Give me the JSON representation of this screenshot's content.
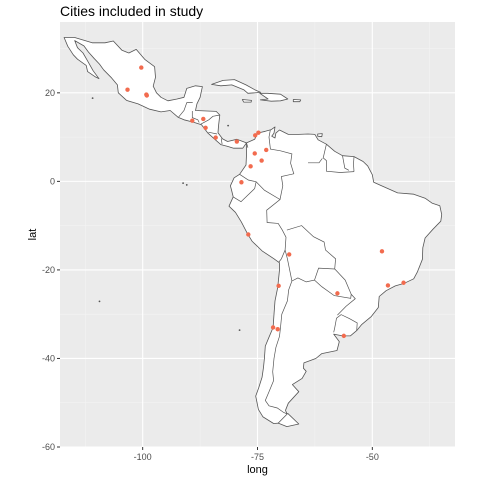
{
  "title": "Cities included in study",
  "colors": {
    "panel_background": "#ebebeb",
    "land_fill": "#ffffff",
    "land_outline": "#555555",
    "city_point": "#f26b4e"
  },
  "chart_data": {
    "type": "scatter",
    "title": "Cities included in study",
    "xlabel": "long",
    "ylabel": "lat",
    "xlim": [
      -118,
      -32
    ],
    "ylim": [
      -60,
      36
    ],
    "x_ticks": [
      -100,
      -75,
      -50
    ],
    "x_tick_labels": [
      "-100",
      "-75",
      "-50"
    ],
    "y_ticks": [
      -60,
      -40,
      -20,
      0,
      20
    ],
    "y_tick_labels": [
      "-60",
      "-40",
      "-20",
      "0",
      "20"
    ],
    "grid": true,
    "basemap": "Latin America country outlines",
    "points": [
      {
        "long": -100.3,
        "lat": 25.7
      },
      {
        "long": -103.3,
        "lat": 20.7
      },
      {
        "long": -99.1,
        "lat": 19.4
      },
      {
        "long": -99.2,
        "lat": 19.6
      },
      {
        "long": -86.8,
        "lat": 14.1
      },
      {
        "long": -89.2,
        "lat": 13.7
      },
      {
        "long": -86.3,
        "lat": 12.1
      },
      {
        "long": -84.1,
        "lat": 9.9
      },
      {
        "long": -79.5,
        "lat": 9.0
      },
      {
        "long": -75.5,
        "lat": 10.4
      },
      {
        "long": -74.8,
        "lat": 11.0
      },
      {
        "long": -75.6,
        "lat": 6.3
      },
      {
        "long": -73.1,
        "lat": 7.1
      },
      {
        "long": -74.1,
        "lat": 4.7
      },
      {
        "long": -76.5,
        "lat": 3.4
      },
      {
        "long": -78.5,
        "lat": -0.2
      },
      {
        "long": -77.0,
        "lat": -12.0
      },
      {
        "long": -68.1,
        "lat": -16.5
      },
      {
        "long": -47.9,
        "lat": -15.8
      },
      {
        "long": -70.4,
        "lat": -23.6
      },
      {
        "long": -46.6,
        "lat": -23.5
      },
      {
        "long": -43.2,
        "lat": -22.9
      },
      {
        "long": -57.6,
        "lat": -25.3
      },
      {
        "long": -71.6,
        "lat": -33.0
      },
      {
        "long": -70.6,
        "lat": -33.4
      },
      {
        "long": -56.2,
        "lat": -34.9
      }
    ]
  }
}
